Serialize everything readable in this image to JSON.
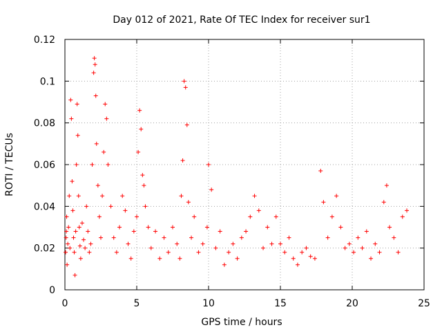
{
  "chart_data": {
    "type": "scatter",
    "title": "Day 012 of 2021, Rate Of TEC Index for receiver sur1",
    "xlabel": "GPS time / hours",
    "ylabel": "ROTI / TECUs",
    "xlim": [
      0,
      25
    ],
    "ylim": [
      0,
      0.12
    ],
    "x_ticks": [
      0,
      5,
      10,
      15,
      20,
      25
    ],
    "x_tick_labels": [
      "0",
      "5",
      "10",
      "15",
      "20",
      "25"
    ],
    "y_ticks": [
      0,
      0.02,
      0.04,
      0.06,
      0.08,
      0.1,
      0.12
    ],
    "y_tick_labels": [
      "0",
      "0.02",
      "0.04",
      "0.06",
      "0.08",
      "0.1",
      "0.12"
    ],
    "grid": true,
    "legend": "none",
    "marker": "plus",
    "marker_color": "#ff0000",
    "series": [
      {
        "x": [
          0.05,
          0.08,
          0.1,
          0.12,
          0.15,
          0.2,
          0.25,
          0.3,
          0.35,
          0.4,
          0.45,
          0.5,
          0.55,
          0.6,
          0.65,
          0.7,
          0.75,
          0.8,
          0.85,
          0.9,
          0.95,
          1.0,
          1.05,
          1.1,
          1.2,
          1.3,
          1.4,
          1.5,
          1.6,
          1.7,
          1.8,
          1.9,
          2.0,
          2.05,
          2.1,
          2.15,
          2.2,
          2.3,
          2.4,
          2.5,
          2.6,
          2.7,
          2.8,
          2.9,
          3.0,
          3.2,
          3.4,
          3.6,
          3.8,
          4.0,
          4.2,
          4.4,
          4.6,
          4.8,
          5.0,
          5.1,
          5.2,
          5.3,
          5.4,
          5.5,
          5.6,
          5.8,
          6.0,
          6.3,
          6.6,
          6.9,
          7.2,
          7.5,
          7.8,
          8.0,
          8.1,
          8.2,
          8.3,
          8.4,
          8.5,
          8.6,
          8.8,
          9.0,
          9.3,
          9.6,
          9.9,
          10.0,
          10.2,
          10.5,
          10.8,
          11.1,
          11.4,
          11.7,
          12.0,
          12.3,
          12.6,
          12.9,
          13.2,
          13.5,
          13.8,
          14.1,
          14.4,
          14.7,
          15.0,
          15.3,
          15.6,
          15.9,
          16.2,
          16.5,
          16.8,
          17.1,
          17.4,
          17.8,
          18.0,
          18.3,
          18.6,
          18.9,
          19.2,
          19.5,
          19.8,
          20.1,
          20.4,
          20.7,
          21.0,
          21.3,
          21.6,
          21.9,
          22.2,
          22.4,
          22.6,
          22.9,
          23.2,
          23.5,
          23.8
        ],
        "y": [
          0.018,
          0.025,
          0.028,
          0.035,
          0.012,
          0.022,
          0.03,
          0.045,
          0.02,
          0.091,
          0.082,
          0.052,
          0.038,
          0.025,
          0.018,
          0.007,
          0.028,
          0.06,
          0.089,
          0.074,
          0.045,
          0.03,
          0.021,
          0.015,
          0.032,
          0.024,
          0.02,
          0.04,
          0.028,
          0.018,
          0.022,
          0.06,
          0.104,
          0.111,
          0.108,
          0.093,
          0.07,
          0.05,
          0.035,
          0.025,
          0.045,
          0.066,
          0.089,
          0.082,
          0.06,
          0.04,
          0.025,
          0.018,
          0.03,
          0.045,
          0.038,
          0.022,
          0.015,
          0.028,
          0.035,
          0.066,
          0.086,
          0.077,
          0.055,
          0.05,
          0.04,
          0.03,
          0.02,
          0.028,
          0.015,
          0.025,
          0.018,
          0.03,
          0.022,
          0.015,
          0.045,
          0.062,
          0.1,
          0.097,
          0.079,
          0.042,
          0.025,
          0.035,
          0.018,
          0.022,
          0.03,
          0.06,
          0.048,
          0.02,
          0.028,
          0.012,
          0.018,
          0.022,
          0.015,
          0.025,
          0.028,
          0.035,
          0.045,
          0.038,
          0.02,
          0.03,
          0.022,
          0.035,
          0.022,
          0.018,
          0.025,
          0.015,
          0.012,
          0.018,
          0.02,
          0.016,
          0.015,
          0.057,
          0.042,
          0.025,
          0.035,
          0.045,
          0.03,
          0.02,
          0.022,
          0.018,
          0.025,
          0.02,
          0.028,
          0.015,
          0.022,
          0.018,
          0.042,
          0.05,
          0.03,
          0.025,
          0.018,
          0.035,
          0.038
        ]
      }
    ]
  }
}
